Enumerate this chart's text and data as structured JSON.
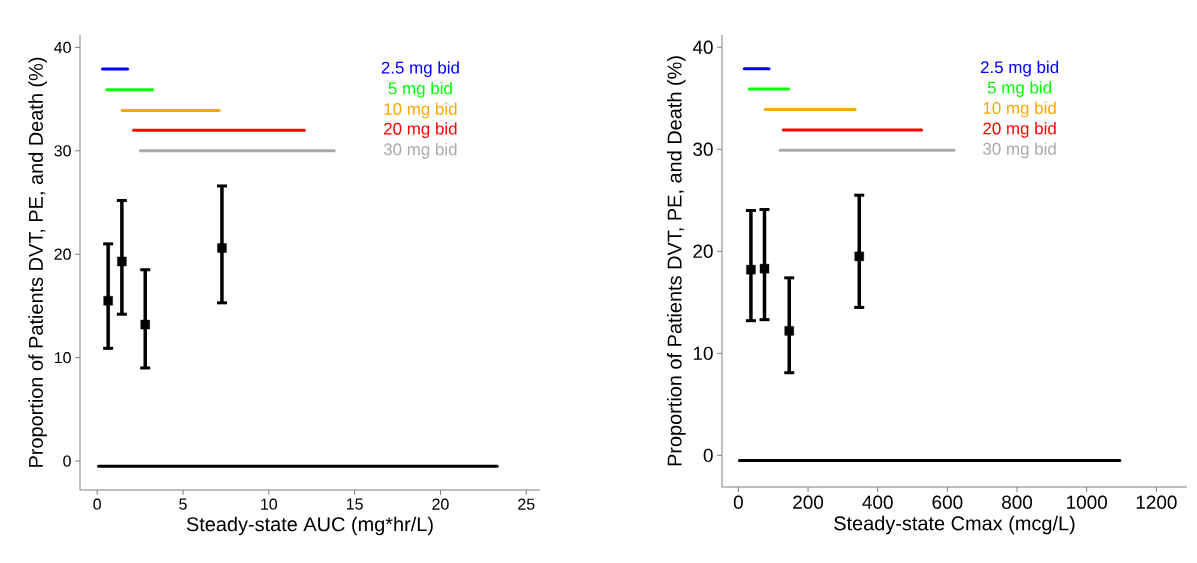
{
  "chart_data": [
    {
      "type": "scatter",
      "xlabel": "Steady-state AUC (mg*hr/L)",
      "ylabel": "Proportion of Patients DVT, PE, and Death (%)",
      "xlim": [
        -1,
        25.8
      ],
      "ylim": [
        -2.8,
        41.2
      ],
      "xticks": [
        0,
        5,
        10,
        15,
        20,
        25
      ],
      "yticks": [
        0,
        10,
        20,
        30,
        40
      ],
      "series": [
        {
          "color": "#000000",
          "marker": "square",
          "x": [
            0.64,
            1.44,
            2.8,
            7.27
          ],
          "values": [
            15.5,
            19.3,
            13.2,
            20.6
          ],
          "errors": [
            [
              10.9,
              21.0
            ],
            [
              14.2,
              25.2
            ],
            [
              9.0,
              18.5
            ],
            [
              15.3,
              26.6
            ]
          ]
        },
        {
          "type": "line",
          "color": "#000000",
          "x": [
            0.08,
            0.9,
            2.0,
            4.2,
            23.3
          ],
          "values": [
            -0.5,
            -0.5,
            -0.5,
            -0.5,
            -0.5
          ]
        },
        {
          "type": "line",
          "name": "2.5 mg bid",
          "color": "#0000ff",
          "x": [
            0.31,
            1.77
          ],
          "values": [
            37.9,
            37.9
          ]
        },
        {
          "type": "line",
          "name": "5 mg bid",
          "color": "#00ff00",
          "x": [
            0.56,
            3.22
          ],
          "values": [
            35.9,
            35.9
          ]
        },
        {
          "type": "line",
          "name": "10 mg bid",
          "color": "#ffa500",
          "x": [
            1.46,
            7.11
          ],
          "values": [
            33.9,
            33.9
          ]
        },
        {
          "type": "line",
          "name": "20 mg bid",
          "color": "#ff0000",
          "x": [
            2.12,
            12.06
          ],
          "values": [
            32.0,
            32.0
          ]
        },
        {
          "type": "line",
          "name": "30 mg bid",
          "color": "#aaaaaa",
          "x": [
            2.52,
            13.81
          ],
          "values": [
            30.0,
            30.0
          ]
        }
      ]
    },
    {
      "type": "scatter",
      "xlabel": "Steady-state Cmax (mcg/L)",
      "ylabel": "Proportion of Patients DVT, PE, and Death (%)",
      "xlim": [
        -47,
        1288
      ],
      "ylim": [
        -3.1,
        41.2
      ],
      "xticks": [
        0,
        200,
        400,
        600,
        800,
        1000,
        1200
      ],
      "yticks": [
        0,
        10,
        20,
        30,
        40
      ],
      "series": [
        {
          "color": "#000000",
          "marker": "square",
          "x": [
            36,
            75,
            146,
            347
          ],
          "values": [
            18.2,
            18.3,
            12.2,
            19.5
          ],
          "errors": [
            [
              13.2,
              24.0
            ],
            [
              13.3,
              24.1
            ],
            [
              8.1,
              17.4
            ],
            [
              14.5,
              25.5
            ]
          ]
        },
        {
          "type": "line",
          "color": "#000000",
          "x": [
            3,
            53,
            102,
            204,
            1095
          ],
          "values": [
            -0.5,
            -0.5,
            -0.5,
            -0.5,
            -0.5
          ]
        },
        {
          "type": "line",
          "name": "2.5 mg bid",
          "color": "#0000ff",
          "x": [
            17,
            88
          ],
          "values": [
            37.9,
            37.9
          ]
        },
        {
          "type": "line",
          "name": "5 mg bid",
          "color": "#00ff00",
          "x": [
            31,
            144
          ],
          "values": [
            35.9,
            35.9
          ]
        },
        {
          "type": "line",
          "name": "10 mg bid",
          "color": "#ffa500",
          "x": [
            77,
            335
          ],
          "values": [
            33.9,
            33.9
          ]
        },
        {
          "type": "line",
          "name": "20 mg bid",
          "color": "#ff0000",
          "x": [
            129,
            526
          ],
          "values": [
            31.9,
            31.9
          ]
        },
        {
          "type": "line",
          "name": "30 mg bid",
          "color": "#aaaaaa",
          "x": [
            120,
            619
          ],
          "values": [
            29.9,
            29.9
          ]
        }
      ]
    }
  ]
}
